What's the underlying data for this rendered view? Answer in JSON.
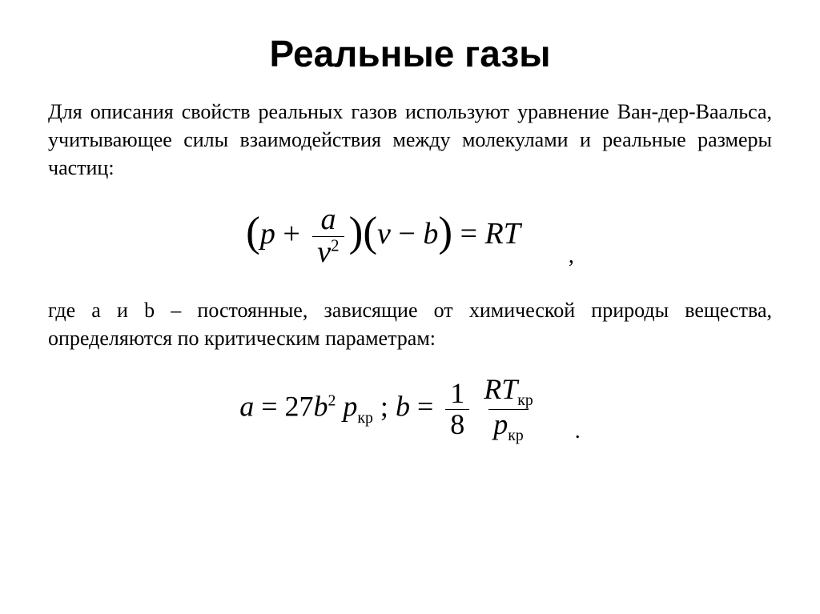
{
  "slide": {
    "title": "Реальные газы",
    "paragraph1": "Для описания свойств реальных газов используют уравнение Ван-дер-Ваальса, учитывающее силы взаимодействия между молекулами и реальные размеры частиц:",
    "paragraph2": "где a и b – постоянные, зависящие от химической природы вещества, определяются по критическим параметрам:",
    "colors": {
      "background": "#ffffff",
      "text": "#000000"
    },
    "typography": {
      "title_font": "Arial",
      "title_size_pt": 34,
      "title_weight": 700,
      "body_font": "Times New Roman",
      "body_size_pt": 20,
      "body_align": "justify"
    },
    "equation1": {
      "latex": "(p + a / v^2)(v - b) = RT",
      "lhs_paren_open": "(",
      "p": "p",
      "plus": " + ",
      "frac_num": "a",
      "frac_den_base": "v",
      "frac_den_sup": "2",
      "lhs_paren_close": ")(",
      "v": "v",
      "minus": " − ",
      "b": "b",
      "rparen": ")",
      "eq": " = ",
      "R": "R",
      "T": "T",
      "trail": ","
    },
    "equation2": {
      "latex": "a = 27 b^2 p_кр ;  b = (1/8) (R T_кр / p_кр)",
      "a": "a",
      "eq1": " = ",
      "coef27": "27",
      "b": "b",
      "sup2": "2",
      "p1": "p",
      "sub_kr": "кр",
      "semicolon": " ; ",
      "b2": "b",
      "eq2": " = ",
      "frac1_num": "1",
      "frac1_den": "8",
      "R": "R",
      "T": "T",
      "p2": "p",
      "trail": "."
    }
  }
}
